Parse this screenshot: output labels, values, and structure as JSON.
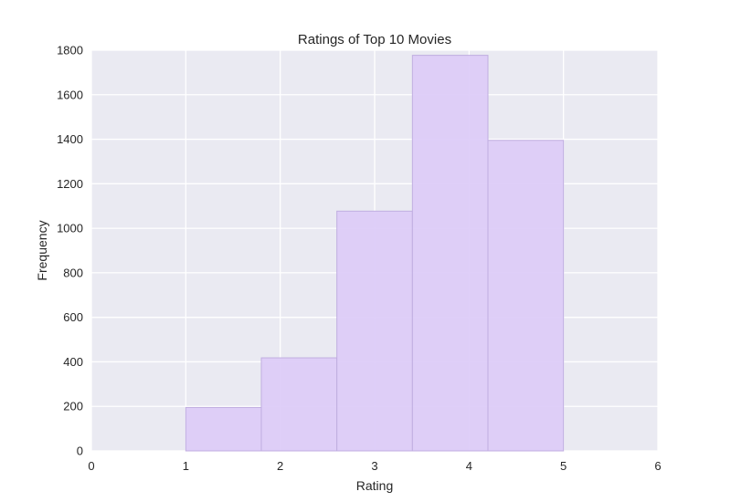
{
  "chart_data": {
    "type": "bar",
    "title": "Ratings of Top 10 Movies",
    "xlabel": "Rating",
    "ylabel": "Frequency",
    "xlim": [
      0,
      6
    ],
    "ylim": [
      0,
      1800
    ],
    "x_ticks": [
      0,
      1,
      2,
      3,
      4,
      5,
      6
    ],
    "y_ticks": [
      0,
      200,
      400,
      600,
      800,
      1000,
      1200,
      1400,
      1600,
      1800
    ],
    "bins": [
      {
        "x0": 1.0,
        "x1": 1.8,
        "value": 195
      },
      {
        "x0": 1.8,
        "x1": 2.6,
        "value": 418
      },
      {
        "x0": 2.6,
        "x1": 3.4,
        "value": 1077
      },
      {
        "x0": 3.4,
        "x1": 4.2,
        "value": 1777
      },
      {
        "x0": 4.2,
        "x1": 5.0,
        "value": 1395
      }
    ],
    "grid": true,
    "colors": {
      "bar_fill": "#dccbf7",
      "bar_edge": "#c0aee0",
      "plot_background": "#eaeaf2",
      "grid": "#ffffff"
    }
  }
}
